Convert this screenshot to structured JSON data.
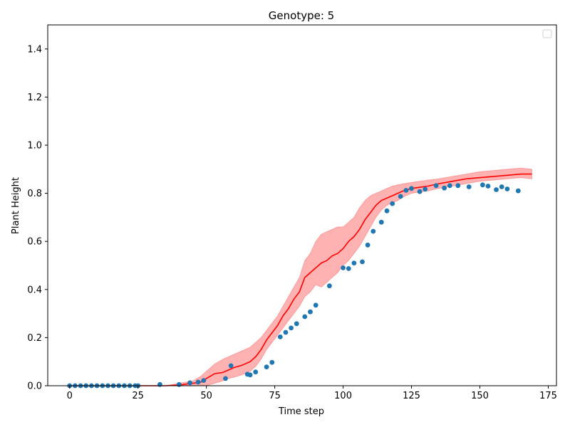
{
  "chart_data": {
    "type": "line",
    "title": "Genotype: 5",
    "xlabel": "Time step",
    "ylabel": "Plant Height",
    "xlim": [
      -8,
      178
    ],
    "ylim": [
      0.0,
      1.5
    ],
    "xticks": [
      0,
      25,
      50,
      75,
      100,
      125,
      150,
      175
    ],
    "yticks": [
      0.0,
      0.2,
      0.4,
      0.6,
      0.8,
      1.0,
      1.2,
      1.4
    ],
    "xtick_labels": [
      "0",
      "25",
      "50",
      "75",
      "100",
      "125",
      "150",
      "175"
    ],
    "ytick_labels": [
      "0.0",
      "0.2",
      "0.4",
      "0.6",
      "0.8",
      "1.0",
      "1.2",
      "1.4"
    ],
    "grid": false,
    "legend": {
      "placement": "top-right",
      "entries": []
    },
    "series": [
      {
        "kind": "line",
        "color": "#ff0000",
        "band_color": "#ff0000",
        "x": [
          0,
          5,
          10,
          15,
          20,
          25,
          30,
          35,
          40,
          45,
          48,
          50,
          53,
          56,
          58,
          60,
          63,
          66,
          68,
          70,
          72,
          74,
          76,
          78,
          80,
          82,
          84,
          86,
          88,
          90,
          92,
          94,
          96,
          98,
          100,
          102,
          104,
          106,
          108,
          110,
          112,
          114,
          116,
          118,
          120,
          122,
          125,
          128,
          131,
          135,
          140,
          145,
          150,
          155,
          160,
          165,
          169
        ],
        "y": [
          0.0,
          0.0,
          0.0,
          0.0,
          0.0,
          0.0,
          0.0,
          0.0,
          0.003,
          0.01,
          0.015,
          0.03,
          0.05,
          0.055,
          0.065,
          0.075,
          0.085,
          0.1,
          0.12,
          0.15,
          0.19,
          0.22,
          0.25,
          0.29,
          0.32,
          0.36,
          0.39,
          0.45,
          0.47,
          0.49,
          0.51,
          0.52,
          0.54,
          0.55,
          0.57,
          0.6,
          0.62,
          0.65,
          0.69,
          0.72,
          0.75,
          0.77,
          0.78,
          0.79,
          0.8,
          0.81,
          0.82,
          0.825,
          0.83,
          0.84,
          0.85,
          0.86,
          0.865,
          0.87,
          0.875,
          0.88,
          0.88
        ],
        "lower": [
          0.0,
          0.0,
          0.0,
          0.0,
          0.0,
          0.0,
          0.0,
          0.0,
          0.0,
          0.0,
          0.0,
          0.0,
          0.01,
          0.02,
          0.03,
          0.035,
          0.045,
          0.06,
          0.08,
          0.11,
          0.15,
          0.18,
          0.21,
          0.24,
          0.27,
          0.3,
          0.33,
          0.37,
          0.39,
          0.42,
          0.41,
          0.43,
          0.45,
          0.47,
          0.5,
          0.52,
          0.55,
          0.58,
          0.62,
          0.66,
          0.7,
          0.73,
          0.75,
          0.76,
          0.77,
          0.785,
          0.8,
          0.805,
          0.81,
          0.82,
          0.83,
          0.84,
          0.85,
          0.855,
          0.86,
          0.865,
          0.86
        ],
        "upper": [
          0.0,
          0.0,
          0.0,
          0.0,
          0.0,
          0.0,
          0.0,
          0.0,
          0.01,
          0.02,
          0.04,
          0.06,
          0.09,
          0.11,
          0.12,
          0.13,
          0.145,
          0.16,
          0.18,
          0.2,
          0.23,
          0.26,
          0.29,
          0.33,
          0.37,
          0.41,
          0.45,
          0.52,
          0.55,
          0.6,
          0.63,
          0.64,
          0.65,
          0.66,
          0.66,
          0.68,
          0.7,
          0.74,
          0.77,
          0.79,
          0.8,
          0.81,
          0.82,
          0.83,
          0.835,
          0.84,
          0.845,
          0.85,
          0.855,
          0.86,
          0.87,
          0.88,
          0.89,
          0.895,
          0.9,
          0.905,
          0.9
        ]
      },
      {
        "kind": "scatter",
        "color": "#1f77b4",
        "x": [
          0,
          2,
          4,
          6,
          8,
          10,
          12,
          14,
          16,
          18,
          20,
          22,
          24,
          25,
          33,
          40,
          44,
          47,
          49,
          57,
          59,
          65,
          66,
          68,
          72,
          74,
          77,
          79,
          81,
          83,
          86,
          88,
          90,
          95,
          100,
          102,
          104,
          107,
          109,
          111,
          114,
          116,
          118,
          121,
          123,
          125,
          128,
          130,
          134,
          137,
          139,
          142,
          146,
          151,
          153,
          156,
          158,
          160,
          164
        ],
        "y": [
          0.0,
          0.0,
          0.0,
          0.0,
          0.0,
          0.0,
          0.0,
          0.0,
          0.0,
          0.0,
          0.0,
          0.0,
          0.0,
          0.0,
          0.005,
          0.005,
          0.012,
          0.015,
          0.022,
          0.03,
          0.083,
          0.048,
          0.045,
          0.057,
          0.078,
          0.097,
          0.203,
          0.222,
          0.24,
          0.258,
          0.287,
          0.307,
          0.335,
          0.415,
          0.49,
          0.487,
          0.51,
          0.515,
          0.585,
          0.642,
          0.68,
          0.727,
          0.757,
          0.787,
          0.812,
          0.82,
          0.807,
          0.817,
          0.832,
          0.822,
          0.832,
          0.832,
          0.827,
          0.835,
          0.83,
          0.815,
          0.827,
          0.818,
          0.81
        ]
      }
    ]
  }
}
